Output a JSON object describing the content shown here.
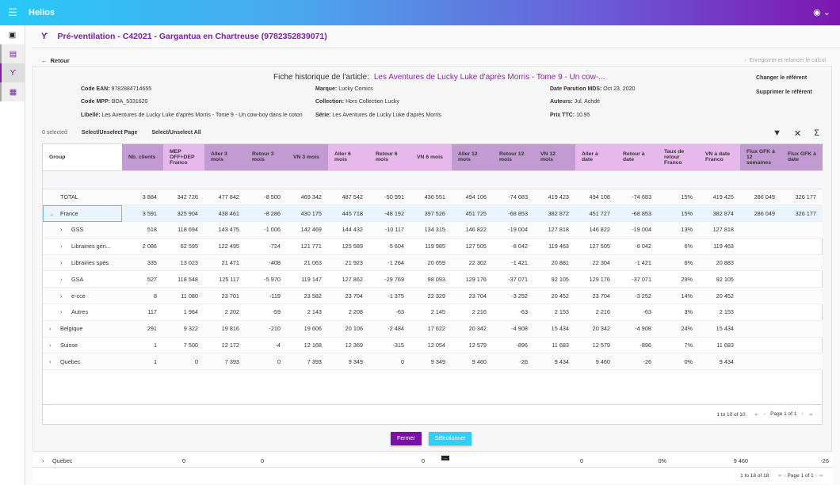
{
  "app": {
    "title": "Helios",
    "menu_icon": "menu-icon",
    "user_icon": "account-circle-icon"
  },
  "sidebar": {
    "items": [
      {
        "icon": "settings-box-icon"
      },
      {
        "icon": "calendar-icon"
      },
      {
        "icon": "fork-icon"
      },
      {
        "icon": "table-icon"
      }
    ]
  },
  "page": {
    "title": "Pré-ventilation - C42021 - Gargantua en Chartreuse (9782352839071)",
    "back_label": "Retour",
    "save_label": "Enregistrer et relancer le calcul"
  },
  "fiche": {
    "label": "Fiche historique de l'article:",
    "title": "Les Aventures de Lucky Luke d'après Morris - Tome 9 - Un cow-...",
    "fields": [
      {
        "k": "Code EAN",
        "v": "9782884714655"
      },
      {
        "k": "Code MPP",
        "v": "BDA_5331620"
      },
      {
        "k": "Libellé",
        "v": "Les Aventures de Lucky Luke d'après Morris - Tome 9 - Un cow-boy dans le coton"
      },
      {
        "k": "Marque",
        "v": "Lucky Comics"
      },
      {
        "k": "Collection",
        "v": "Hors Collection Lucky"
      },
      {
        "k": "Série",
        "v": "Les Aventures de Lucky Luke d'après Morris"
      },
      {
        "k": "Date Parution MDS",
        "v": "Oct 23, 2020"
      },
      {
        "k": "Auteurs",
        "v": "Jul, Achdé"
      },
      {
        "k": "Prix TTC",
        "v": "10.95"
      }
    ],
    "change_ref": "Changer le référent",
    "delete_ref": "Supprimer le référent"
  },
  "selection": {
    "count": "0 selected",
    "page": "Select/Unselect Page",
    "all": "Select/Unselect All"
  },
  "colors": {
    "header_dark": "#c39bd3",
    "header_light": "#e6b8ec",
    "primary": "#7b0fa8",
    "accent": "#2fd0f5"
  },
  "table": {
    "columns": [
      "Group",
      "Nb. clients",
      "MEP OFF+DEP Franco",
      "Aller 3 mois",
      "Retour 3 mois",
      "VN 3 mois",
      "Aller 6 mois",
      "Retour 6 mois",
      "VN 6 mois",
      "Aller 12 mois",
      "Retour 12 mois",
      "VN 12 mois",
      "Aller à date",
      "Retour à date",
      "Taux de retour Franco",
      "VN à date Franco",
      "Flux GFK à 12 semaines",
      "Flux GFK à date"
    ],
    "rows": [
      {
        "level": 0,
        "expander": "",
        "group": "TOTAL",
        "values": [
          "3 884",
          "342 726",
          "477 842",
          "-8 500",
          "469 342",
          "487 542",
          "-50 991",
          "436 551",
          "494 106",
          "-74 683",
          "419 423",
          "494 108",
          "-74 683",
          "15%",
          "419 425",
          "286 049",
          "326 177"
        ]
      },
      {
        "level": 0,
        "expander": "open",
        "group": "France",
        "selected": true,
        "values": [
          "3 591",
          "325 904",
          "438 461",
          "-8 286",
          "430 175",
          "445 718",
          "-48 192",
          "397 526",
          "451 725",
          "-68 853",
          "382 872",
          "451 727",
          "-68 853",
          "15%",
          "382 874",
          "286 049",
          "326 177"
        ]
      },
      {
        "level": 1,
        "expander": "closed",
        "group": "GSS",
        "values": [
          "518",
          "118 694",
          "143 475",
          "-1 006",
          "142 469",
          "144 432",
          "-10 117",
          "134 315",
          "146 822",
          "-19 004",
          "127 818",
          "146 822",
          "-19 004",
          "13%",
          "127 818",
          "",
          ""
        ]
      },
      {
        "level": 1,
        "expander": "closed",
        "group": "Librairies gén...",
        "values": [
          "2 086",
          "62 595",
          "122 495",
          "-724",
          "121 771",
          "125 589",
          "-5 604",
          "119 985",
          "127 505",
          "-8 042",
          "119 463",
          "127 505",
          "-8 042",
          "6%",
          "119 463",
          "",
          ""
        ]
      },
      {
        "level": 1,
        "expander": "closed",
        "group": "Librairies spés",
        "values": [
          "335",
          "13 023",
          "21 471",
          "-408",
          "21 063",
          "21 923",
          "-1 264",
          "20 659",
          "22 302",
          "-1 421",
          "20 881",
          "22 304",
          "-1 421",
          "6%",
          "20 883",
          "",
          ""
        ]
      },
      {
        "level": 1,
        "expander": "closed",
        "group": "GSA",
        "values": [
          "527",
          "118 548",
          "125 117",
          "-5 970",
          "119 147",
          "127 862",
          "-29 769",
          "98 093",
          "129 176",
          "-37 071",
          "92 105",
          "129 176",
          "-37 071",
          "29%",
          "92 105",
          "",
          ""
        ]
      },
      {
        "level": 1,
        "expander": "closed",
        "group": "e-cce",
        "values": [
          "8",
          "11 080",
          "23 701",
          "-119",
          "23 582",
          "23 704",
          "-1 375",
          "22 329",
          "23 704",
          "-3 252",
          "20 452",
          "23 704",
          "-3 252",
          "14%",
          "20 452",
          "",
          ""
        ]
      },
      {
        "level": 1,
        "expander": "closed",
        "group": "Autres",
        "values": [
          "117",
          "1 964",
          "2 202",
          "-59",
          "2 143",
          "2 208",
          "-63",
          "2 145",
          "2 216",
          "-63",
          "2 153",
          "2 216",
          "-63",
          "3%",
          "2 153",
          "",
          ""
        ]
      },
      {
        "level": 0,
        "expander": "closed",
        "group": "Belgique",
        "values": [
          "291",
          "9 322",
          "19 816",
          "-210",
          "19 606",
          "20 106",
          "-2 484",
          "17 622",
          "20 342",
          "-4 908",
          "15 434",
          "20 342",
          "-4 908",
          "24%",
          "15 434",
          "",
          ""
        ]
      },
      {
        "level": 0,
        "expander": "closed",
        "group": "Suisse",
        "values": [
          "1",
          "7 500",
          "12 172",
          "-4",
          "12 168",
          "12 369",
          "-315",
          "12 054",
          "12 579",
          "-896",
          "11 683",
          "12 579",
          "-896",
          "7%",
          "11 683",
          "",
          ""
        ]
      },
      {
        "level": 0,
        "expander": "closed",
        "group": "Quebec",
        "values": [
          "1",
          "0",
          "7 393",
          "0",
          "7 393",
          "9 349",
          "0",
          "9 349",
          "9 460",
          "-26",
          "9 434",
          "9 460",
          "-26",
          "0%",
          "9 434",
          "",
          ""
        ]
      }
    ],
    "pager": {
      "range": "1 to 10 of 10",
      "page": "Page 1 of 1"
    }
  },
  "buttons": {
    "close": "Fermer",
    "select": "Sélectionner"
  },
  "background_row": {
    "group": "Quebec",
    "values": [
      "0",
      "0",
      "0",
      "0",
      "0%",
      "9 460",
      "-26"
    ]
  },
  "background_pager": {
    "range": "1 to 18 of 18",
    "page": "Page 1 of 1"
  }
}
